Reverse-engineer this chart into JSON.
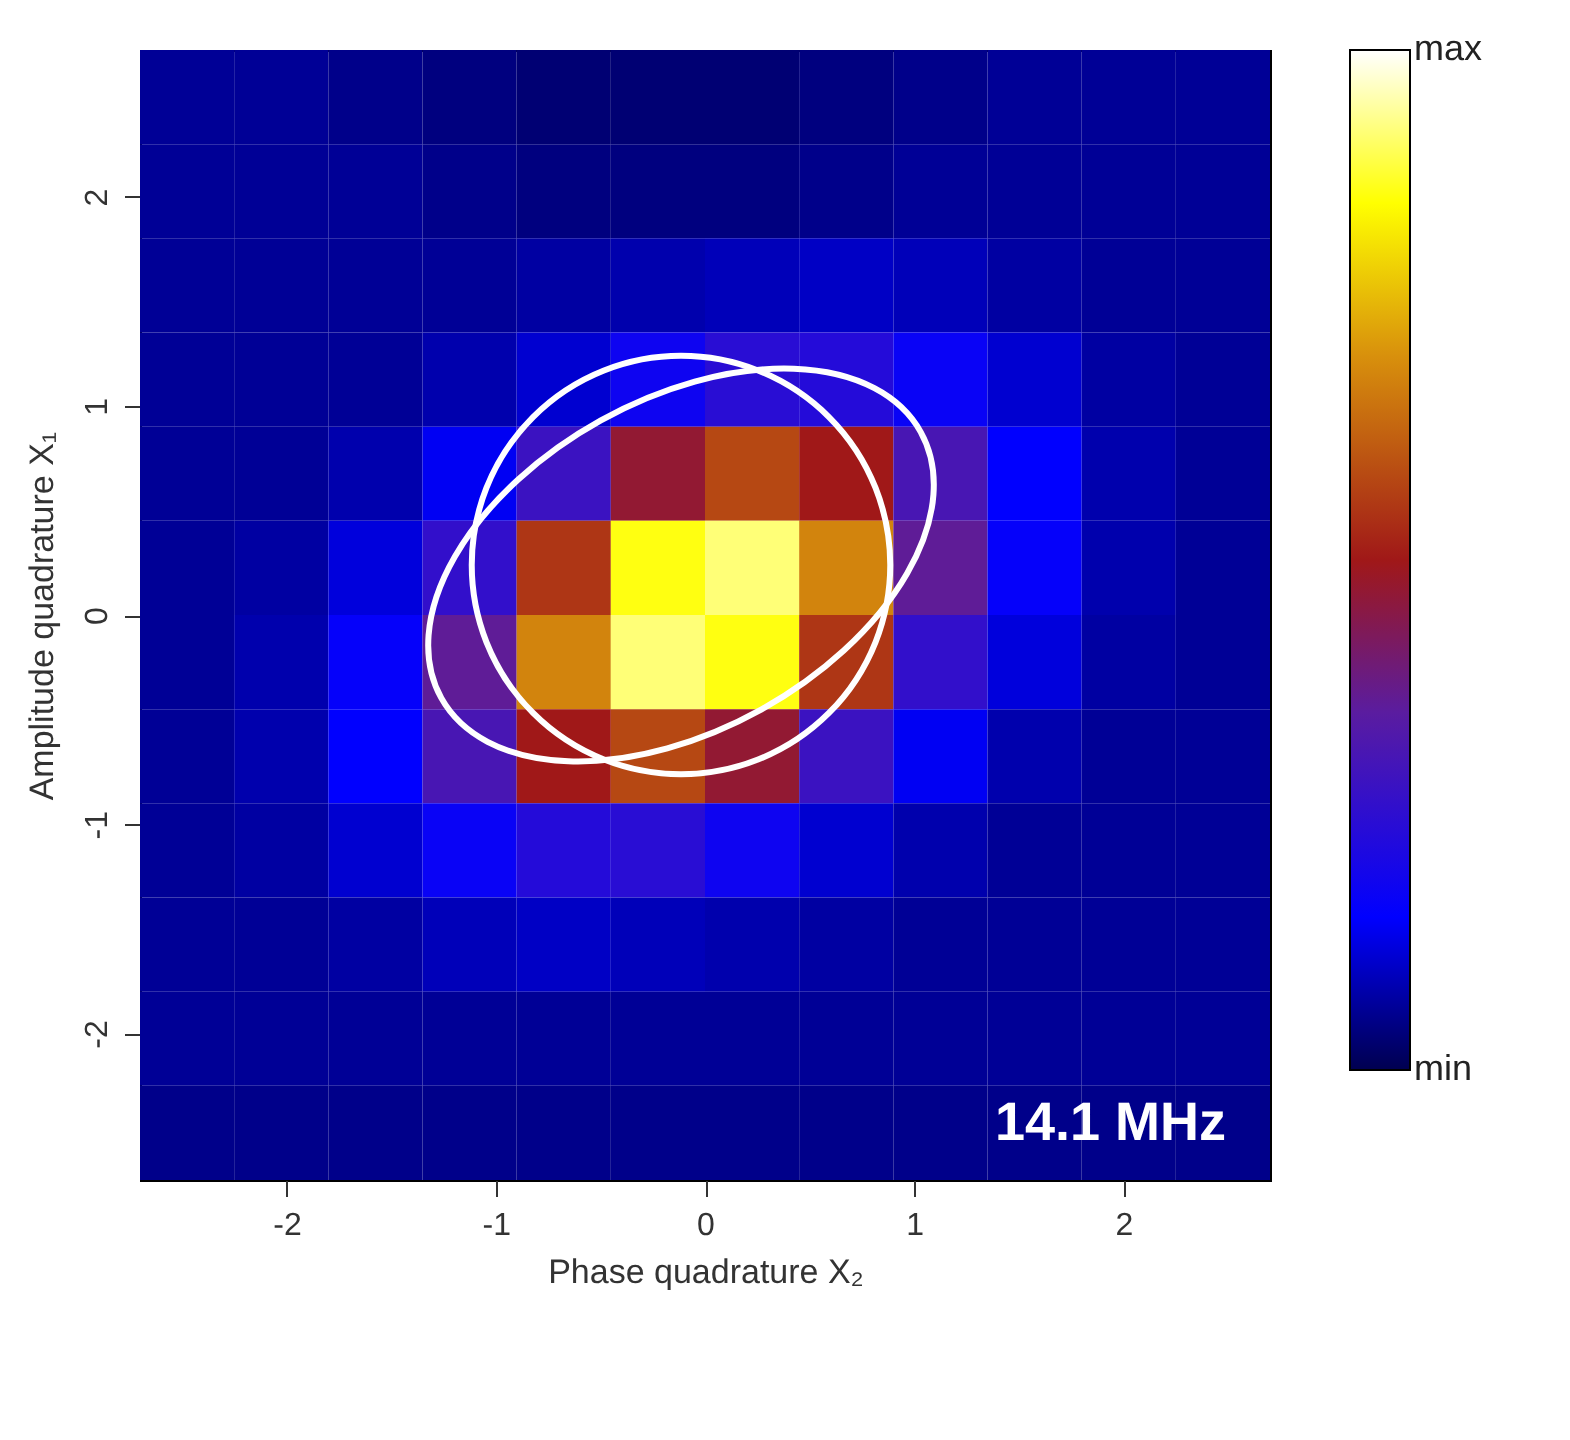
{
  "chart_data": {
    "type": "heatmap",
    "xlabel": "Phase quadrature X₂",
    "ylabel": "Amplitude quadrature X₁",
    "cells": [
      [
        0.06,
        0.06,
        0.05,
        0.04,
        0.03,
        0.03,
        0.03,
        0.04,
        0.05,
        0.06,
        0.06,
        0.06
      ],
      [
        0.06,
        0.06,
        0.06,
        0.05,
        0.04,
        0.04,
        0.04,
        0.05,
        0.06,
        0.06,
        0.06,
        0.06
      ],
      [
        0.06,
        0.06,
        0.06,
        0.06,
        0.07,
        0.08,
        0.09,
        0.1,
        0.09,
        0.07,
        0.06,
        0.06
      ],
      [
        0.06,
        0.06,
        0.06,
        0.08,
        0.11,
        0.18,
        0.24,
        0.23,
        0.17,
        0.11,
        0.07,
        0.06
      ],
      [
        0.06,
        0.06,
        0.08,
        0.14,
        0.28,
        0.47,
        0.58,
        0.5,
        0.31,
        0.15,
        0.08,
        0.06
      ],
      [
        0.06,
        0.07,
        0.12,
        0.26,
        0.55,
        0.86,
        0.92,
        0.68,
        0.36,
        0.16,
        0.08,
        0.06
      ],
      [
        0.06,
        0.08,
        0.16,
        0.36,
        0.68,
        0.92,
        0.86,
        0.55,
        0.26,
        0.12,
        0.07,
        0.06
      ],
      [
        0.06,
        0.08,
        0.15,
        0.31,
        0.5,
        0.58,
        0.47,
        0.28,
        0.14,
        0.08,
        0.06,
        0.06
      ],
      [
        0.06,
        0.07,
        0.11,
        0.17,
        0.23,
        0.24,
        0.18,
        0.11,
        0.08,
        0.06,
        0.06,
        0.06
      ],
      [
        0.06,
        0.06,
        0.07,
        0.09,
        0.1,
        0.09,
        0.08,
        0.07,
        0.06,
        0.06,
        0.06,
        0.06
      ],
      [
        0.06,
        0.06,
        0.06,
        0.06,
        0.06,
        0.06,
        0.06,
        0.06,
        0.06,
        0.06,
        0.06,
        0.06
      ],
      [
        0.05,
        0.05,
        0.05,
        0.05,
        0.05,
        0.05,
        0.05,
        0.05,
        0.05,
        0.05,
        0.05,
        0.05
      ]
    ],
    "clim": [
      0,
      1
    ],
    "cticks": [
      {
        "value": 0,
        "label": "min"
      },
      {
        "value": 1,
        "label": "max"
      }
    ],
    "xlim": [
      -2.7,
      2.7
    ],
    "ylim": [
      -2.7,
      2.7
    ],
    "xticks": [
      -2,
      -1,
      0,
      1,
      2
    ],
    "yticks": [
      -2,
      -1,
      0,
      1,
      2
    ],
    "annotations": [
      "14.1 MHz"
    ]
  }
}
